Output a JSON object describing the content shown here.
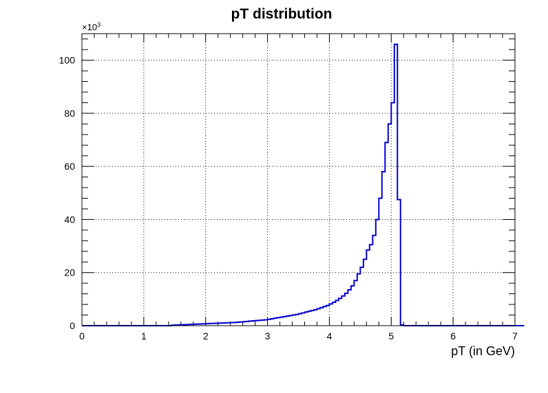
{
  "chart_data": {
    "type": "histogram",
    "title": "pT distribution",
    "xlabel": "pT (in GeV)",
    "ylabel": "",
    "y_multiplier": "×10",
    "y_multiplier_exp": "3",
    "xlim": [
      0,
      7
    ],
    "ylim": [
      0,
      110
    ],
    "bin_width": 0.05,
    "grid": true,
    "legend": "none",
    "line_color": "#0000cc",
    "x_ticks": [
      "0",
      "1",
      "2",
      "3",
      "4",
      "5",
      "6",
      "7"
    ],
    "y_ticks": [
      "0",
      "20",
      "40",
      "60",
      "80",
      "100"
    ],
    "y_tick_values": [
      0,
      20,
      40,
      60,
      80,
      100
    ],
    "bin_edges_start": 0,
    "values": [
      0,
      0,
      0,
      0,
      0,
      0,
      0,
      0,
      0,
      0,
      0,
      0,
      0,
      0,
      0,
      0,
      0,
      0,
      0,
      0,
      0,
      0,
      0,
      0,
      0,
      0,
      0,
      0,
      0,
      0.2,
      0.25,
      0.3,
      0.35,
      0.4,
      0.45,
      0.5,
      0.55,
      0.6,
      0.65,
      0.7,
      0.75,
      0.8,
      0.85,
      0.9,
      0.95,
      1.0,
      1.05,
      1.1,
      1.15,
      1.2,
      1.3,
      1.4,
      1.5,
      1.6,
      1.7,
      1.8,
      1.9,
      2.0,
      2.1,
      2.2,
      2.4,
      2.6,
      2.8,
      3.0,
      3.2,
      3.4,
      3.6,
      3.8,
      4.0,
      4.2,
      4.5,
      4.8,
      5.1,
      5.4,
      5.7,
      6.0,
      6.4,
      6.8,
      7.2,
      7.6,
      8.2,
      8.8,
      9.5,
      10.3,
      11.2,
      12.2,
      13.5,
      15,
      17,
      19.5,
      22,
      25,
      28.5,
      30.5,
      34,
      40,
      48,
      58,
      69,
      76,
      84,
      106,
      47.5,
      0.3,
      0,
      0,
      0,
      0,
      0,
      0,
      0,
      0,
      0,
      0,
      0,
      0,
      0,
      0,
      0,
      0,
      0,
      0,
      0,
      0,
      0,
      0,
      0,
      0,
      0,
      0,
      0,
      0,
      0,
      0,
      0,
      0,
      0,
      0,
      0,
      0,
      0,
      0,
      0,
      0
    ]
  }
}
